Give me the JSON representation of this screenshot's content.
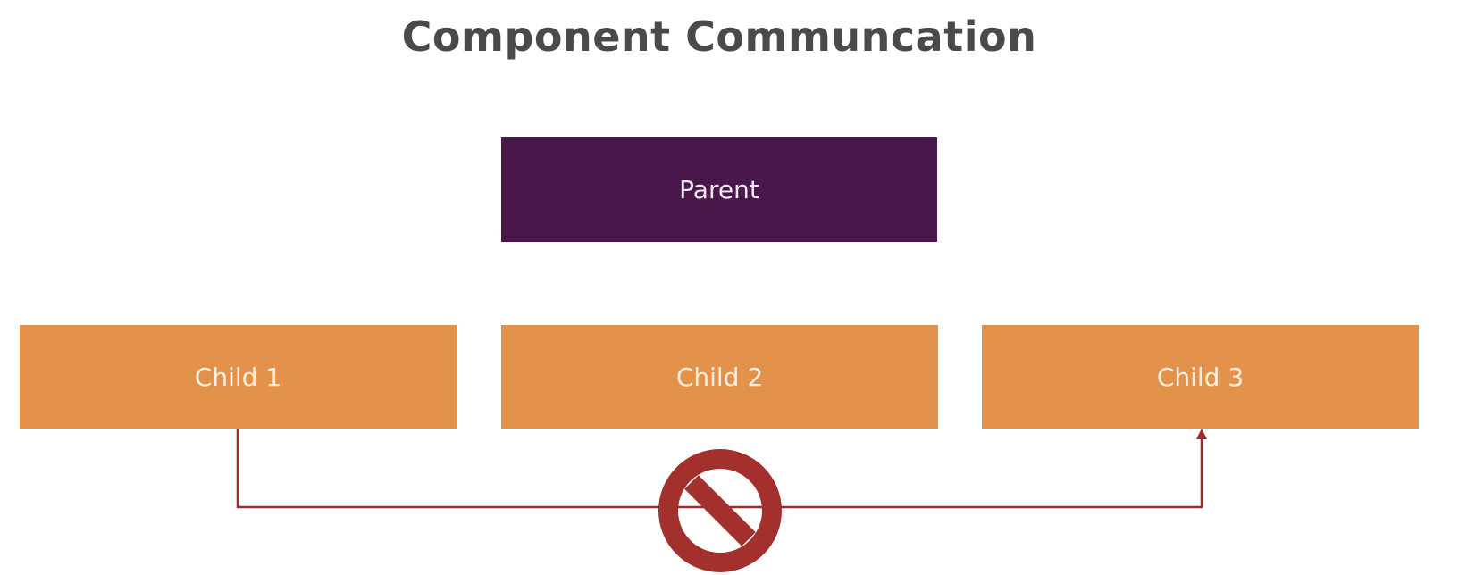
{
  "title": "Component Communcation",
  "nodes": {
    "parent": "Parent",
    "children": [
      "Child 1",
      "Child 2",
      "Child 3"
    ]
  },
  "icons": {
    "blocked": "no-entry-icon"
  },
  "colors": {
    "title": "#4a4a4a",
    "parent": "#4a174b",
    "child": "#e2924a",
    "connector": "#9e2b2b",
    "block_icon": "#a3302c"
  }
}
